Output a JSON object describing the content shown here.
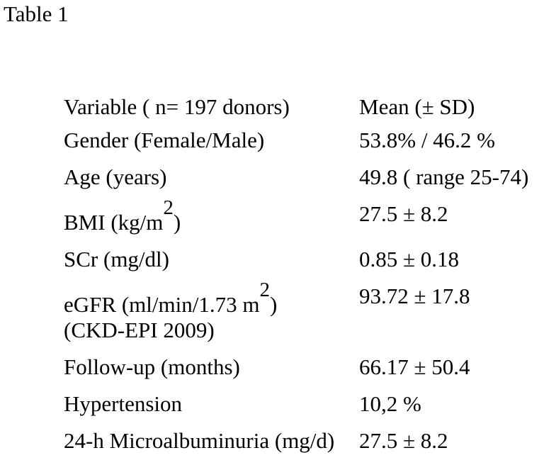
{
  "title": "Table 1",
  "table": {
    "header": {
      "variable": "Variable ( n= 197 donors)",
      "value": "Mean (± SD)"
    },
    "rows": [
      {
        "label": "Gender (Female/Male)",
        "value": "53.8% / 46.2 %"
      },
      {
        "label": "Age (years)",
        "value": "49.8 ( range 25-74)"
      },
      {
        "label": "BMI (kg/m",
        "label_sup": "2",
        "label_end": ")",
        "value": "27.5 ± 8.2"
      },
      {
        "label": "SCr (mg/dl)",
        "value": "0.85 ± 0.18"
      },
      {
        "label": "eGFR (ml/min/1.73 m",
        "label_sup": "2",
        "label_end": ")",
        "label_line2": "(CKD-EPI 2009)",
        "value": "93.72 ± 17.8"
      },
      {
        "label": "Follow-up (months)",
        "value": "66.17 ± 50.4"
      },
      {
        "label": "Hypertension",
        "value": "10,2 %"
      },
      {
        "label": "24-h Microalbuminuria (mg/d)",
        "value": "27.5 ± 8.2"
      }
    ]
  }
}
